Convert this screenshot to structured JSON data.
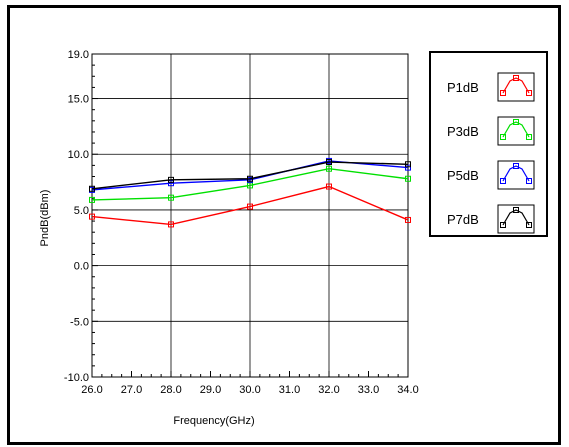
{
  "chart_data": {
    "type": "line",
    "title": "",
    "xlabel": "Frequency(GHz)",
    "ylabel": "PndB(dBm)",
    "xlim": [
      26.0,
      34.0
    ],
    "ylim": [
      -10.0,
      19.0
    ],
    "xticks": [
      "26.0",
      "27.0",
      "28.0",
      "29.0",
      "30.0",
      "31.0",
      "32.0",
      "33.0",
      "34.0"
    ],
    "yticks": [
      "19.0",
      "15.0",
      "10.0",
      "5.0",
      "0.0",
      "-5.0",
      "-10.0"
    ],
    "grid": true,
    "legend_position": "right",
    "series": [
      {
        "name": "P1dB",
        "color": "#ff0000",
        "x": [
          26,
          28,
          30,
          32,
          34
        ],
        "y": [
          4.4,
          3.7,
          5.3,
          7.1,
          4.1
        ]
      },
      {
        "name": "P3dB",
        "color": "#00e000",
        "x": [
          26,
          28,
          30,
          32,
          34
        ],
        "y": [
          5.9,
          6.1,
          7.2,
          8.7,
          7.8
        ]
      },
      {
        "name": "P5dB",
        "color": "#0000ff",
        "x": [
          26,
          28,
          30,
          32,
          34
        ],
        "y": [
          6.8,
          7.4,
          7.7,
          9.4,
          8.8
        ]
      },
      {
        "name": "P7dB",
        "color": "#000000",
        "x": [
          26,
          28,
          30,
          32,
          34
        ],
        "y": [
          6.9,
          7.7,
          7.8,
          9.3,
          9.1
        ]
      }
    ]
  }
}
